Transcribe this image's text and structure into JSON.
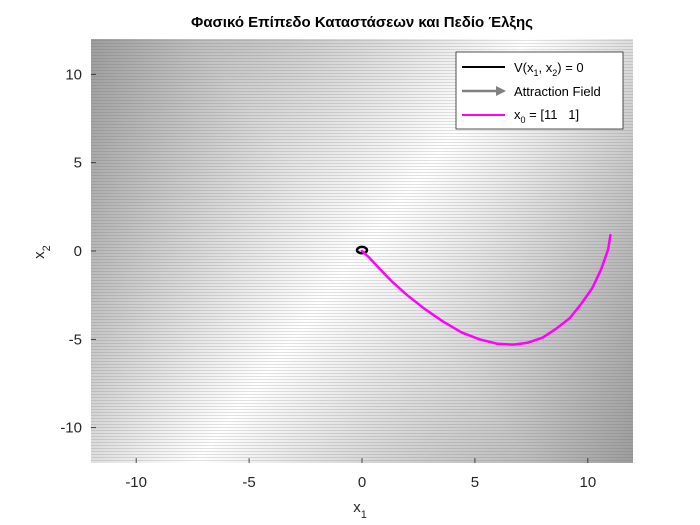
{
  "chart_data": {
    "type": "line",
    "title": "Φασικό Επίπεδο Καταστάσεων και Πεδίο Έλξης",
    "xlabel": "x",
    "xlabel_sub": "1",
    "ylabel": "x",
    "ylabel_sub": "2",
    "xlim": [
      -12,
      12
    ],
    "ylim": [
      -12,
      12
    ],
    "xticks": [
      -10,
      -5,
      0,
      5,
      10
    ],
    "yticks": [
      -10,
      -5,
      0,
      5,
      10
    ],
    "xtick_labels": [
      "-10",
      "-5",
      "0",
      "5",
      "10"
    ],
    "ytick_labels": [
      "-10",
      "-5",
      "0",
      "5",
      "10"
    ],
    "legend_position": "top-right",
    "legend": [
      {
        "label": "V(x",
        "sub1": "1",
        "mid": ", x",
        "sub2": "2",
        "tail": ") = 0",
        "color": "#000000"
      },
      {
        "label": "Attraction Field",
        "color": "#808080"
      },
      {
        "label": "x",
        "sub1": "0",
        "tail": " = [11   1]",
        "color": "#ff00ff"
      }
    ],
    "background_field": {
      "description_color_dark": "#808080",
      "description_color_light": "#ffffff",
      "light_direction": [
        1,
        -1
      ]
    },
    "series": [
      {
        "name": "V(x1, x2) = 0",
        "color": "#000000",
        "shape": "ellipse",
        "center": [
          0,
          0.05
        ],
        "rx": 0.22,
        "ry": 0.18
      },
      {
        "name": "x0 = [11   1]",
        "color": "#ff00ff",
        "x": [
          11,
          10.9,
          10.6,
          10.2,
          9.7,
          9.2,
          8.6,
          8.0,
          7.3,
          6.7,
          6.0,
          5.2,
          4.4,
          3.6,
          2.8,
          2.0,
          1.3,
          0.7,
          0.3,
          0.0
        ],
        "y": [
          0.9,
          0.1,
          -1.0,
          -2.1,
          -3.0,
          -3.8,
          -4.4,
          -4.9,
          -5.2,
          -5.3,
          -5.25,
          -5.0,
          -4.6,
          -4.0,
          -3.3,
          -2.5,
          -1.7,
          -0.9,
          -0.35,
          0.0
        ]
      }
    ]
  }
}
